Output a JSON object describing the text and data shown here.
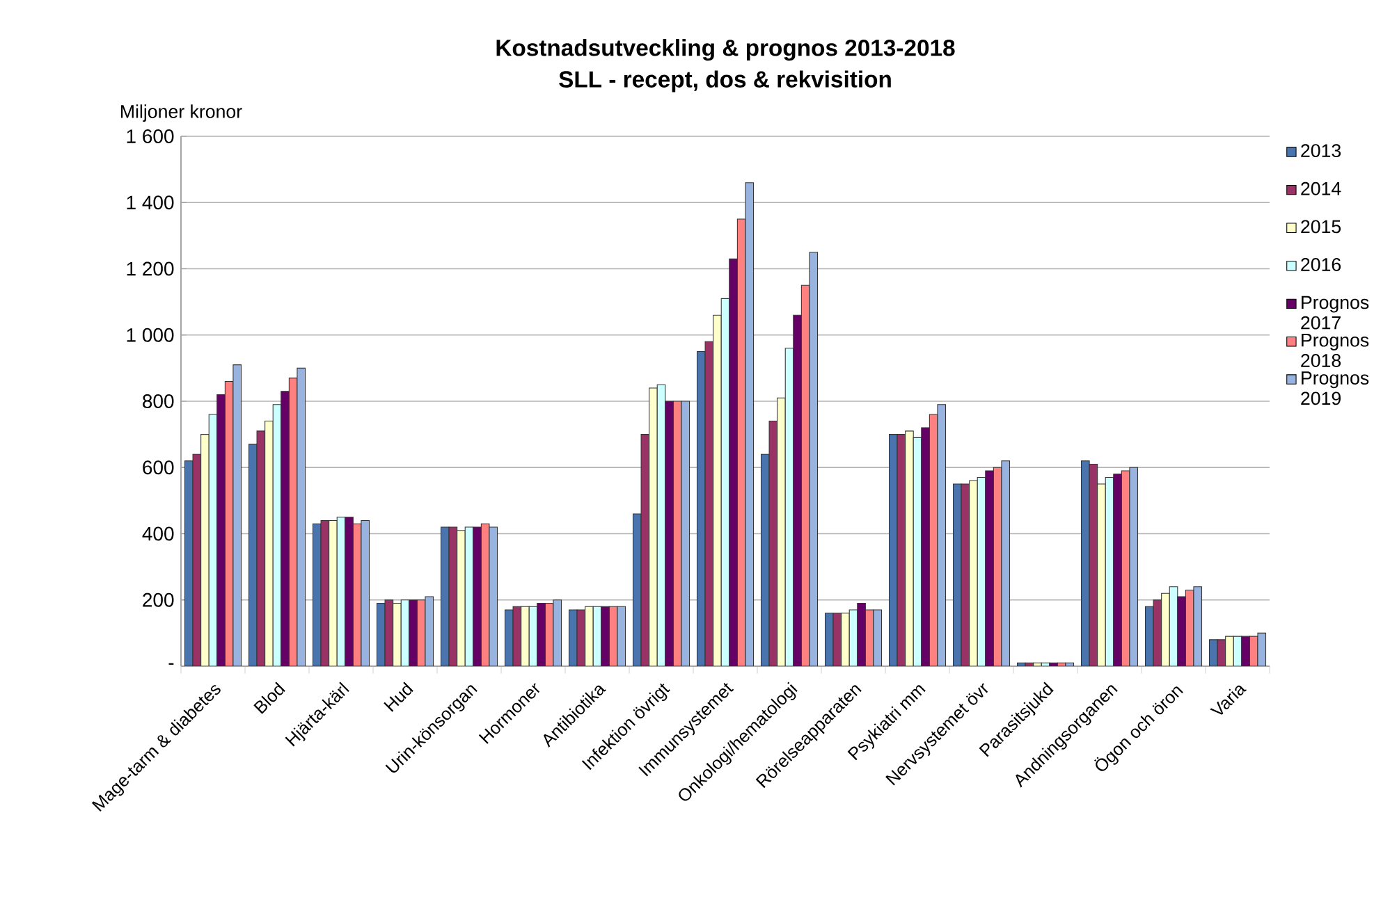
{
  "chart_data": {
    "type": "bar",
    "title": "Kostnadsutveckling & prognos 2013-2018",
    "subtitle": "SLL - recept, dos & rekvisition",
    "ylabel": "Miljoner kronor",
    "categories": [
      "Mage-tarm & diabetes",
      "Blod",
      "Hjärta-kärl",
      "Hud",
      "Urin-könsorgan",
      "Hormoner",
      "Antibiotika",
      "Infektion övrigt",
      "Immunsystemet",
      "Onkologi/hematologi",
      "Rörelseapparaten",
      "Psykiatri mm",
      "Nervsystemet övr",
      "Parasitsjukd",
      "Andningsorganen",
      "Ögon och öron",
      "Varia"
    ],
    "series": [
      {
        "name": "2013",
        "color": "#4a74ad",
        "values": [
          620,
          670,
          430,
          190,
          420,
          170,
          170,
          460,
          950,
          640,
          160,
          700,
          550,
          10,
          620,
          180,
          80
        ]
      },
      {
        "name": "2014",
        "color": "#993366",
        "values": [
          640,
          710,
          440,
          200,
          420,
          180,
          170,
          700,
          980,
          740,
          160,
          700,
          550,
          10,
          610,
          200,
          80
        ]
      },
      {
        "name": "2015",
        "color": "#ffffcc",
        "values": [
          700,
          740,
          440,
          190,
          410,
          180,
          180,
          840,
          1060,
          810,
          160,
          710,
          560,
          10,
          550,
          220,
          90
        ]
      },
      {
        "name": "2016",
        "color": "#ccffff",
        "values": [
          760,
          790,
          450,
          200,
          420,
          180,
          180,
          850,
          1110,
          960,
          170,
          690,
          570,
          10,
          570,
          240,
          90
        ]
      },
      {
        "name": "Prognos 2017",
        "color": "#660066",
        "values": [
          820,
          830,
          450,
          200,
          420,
          190,
          180,
          800,
          1230,
          1060,
          190,
          720,
          590,
          10,
          580,
          210,
          90
        ]
      },
      {
        "name": "Prognos 2018",
        "color": "#ff8080",
        "values": [
          860,
          870,
          430,
          200,
          430,
          190,
          180,
          800,
          1350,
          1150,
          170,
          760,
          600,
          10,
          590,
          230,
          90
        ]
      },
      {
        "name": "Prognos 2019",
        "color": "#99b3e0",
        "values": [
          910,
          900,
          440,
          210,
          420,
          200,
          180,
          800,
          1460,
          1250,
          170,
          790,
          620,
          10,
          600,
          240,
          100
        ]
      }
    ],
    "ylim": [
      0,
      1600
    ],
    "yticks": [
      {
        "value": 0,
        "label": "-"
      },
      200,
      400,
      600,
      800,
      {
        "value": 1000,
        "label": "1 000"
      },
      {
        "value": 1200,
        "label": "1 200"
      },
      {
        "value": 1400,
        "label": "1 400"
      },
      {
        "value": 1600,
        "label": "1 600"
      }
    ],
    "grid": "y",
    "legend": "right"
  }
}
